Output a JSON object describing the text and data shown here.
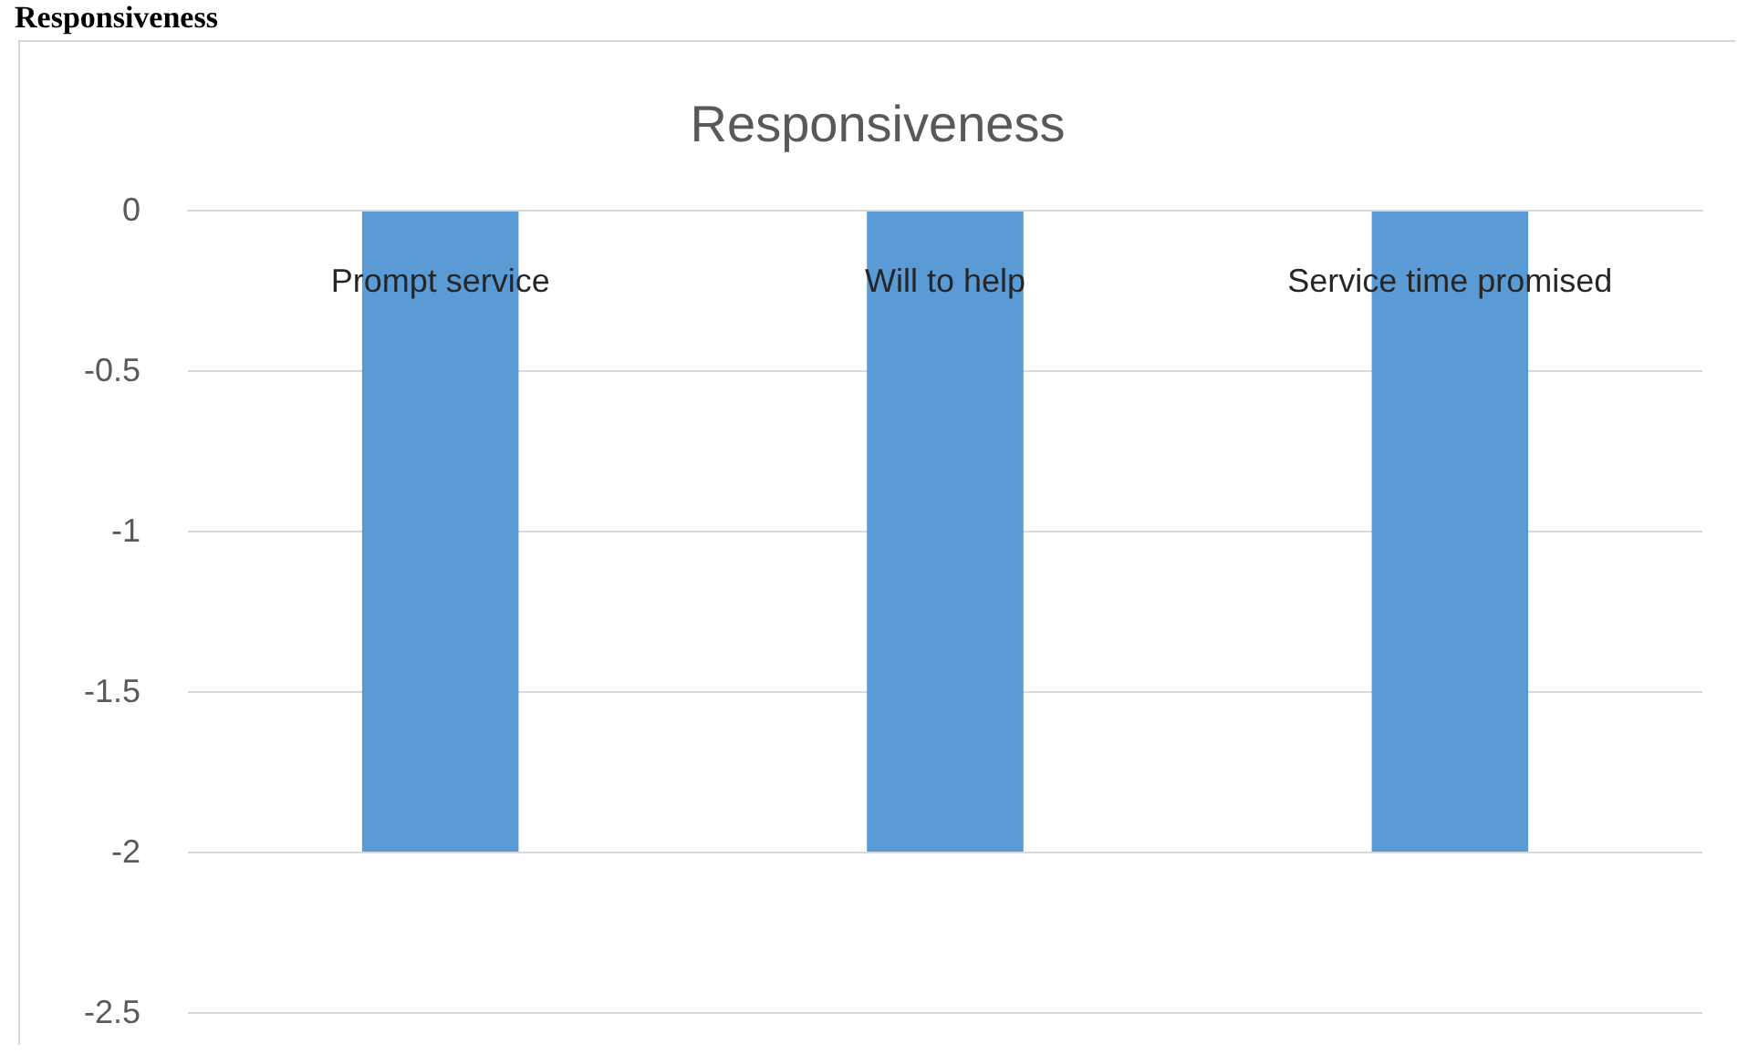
{
  "chart_data": {
    "type": "bar",
    "title": "Responsiveness",
    "annotations": [
      "Responsiveness"
    ],
    "categories": [
      "Prompt service",
      "Will to help",
      "Service time promised"
    ],
    "values": [
      -2,
      -2,
      -2
    ],
    "color": "#5b9bd5",
    "ylim": [
      -2.5,
      0
    ],
    "yticks": [
      0,
      -0.5,
      -1,
      -1.5,
      -2,
      -2.5
    ],
    "grid": "y"
  }
}
